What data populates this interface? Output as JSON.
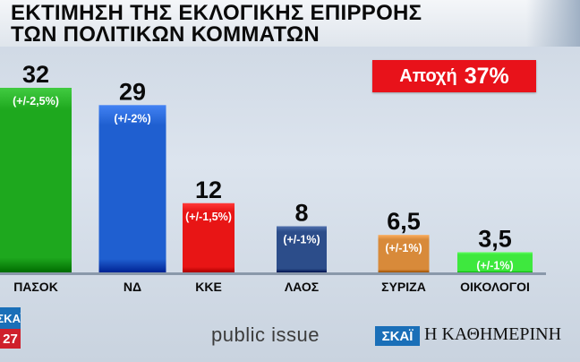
{
  "header": {
    "title_line1": "ΕΚΤΙΜΗΣΗ ΤΗΣ ΕΚΛΟΓΙΚΗΣ ΕΠΙΡΡΟΗΣ",
    "title_line2": "ΤΩΝ ΠΟΛΙΤΙΚΩΝ ΚΟΜΜΑΤΩΝ"
  },
  "abstention": {
    "label": "Αποχή",
    "value": "37%"
  },
  "chart_data": {
    "type": "bar",
    "title": "ΕΚΤΙΜΗΣΗ ΤΗΣ ΕΚΛΟΓΙΚΗΣ ΕΠΙΡΡΟΗΣ ΤΩΝ ΠΟΛΙΤΙΚΩΝ ΚΟΜΜΑΤΩΝ",
    "categories": [
      "ΠΑΣΟΚ",
      "ΝΔ",
      "ΚΚΕ",
      "ΛΑΟΣ",
      "ΣΥΡΙΖΑ",
      "ΟΙΚΟΛΟΓΟΙ"
    ],
    "values": [
      32,
      29,
      12,
      8,
      6.5,
      3.5
    ],
    "value_labels": [
      "32",
      "29",
      "12",
      "8",
      "6,5",
      "3,5"
    ],
    "margins": [
      "(+/-2,5%)",
      "(+/-2%)",
      "(+/-1,5%)",
      "(+/-1%)",
      "(+/-1%)",
      "(+/-1%)"
    ],
    "colors": [
      "#1ea81e",
      "#1f5fd0",
      "#e81515",
      "#2c4d8a",
      "#d88a3a",
      "#3ee83e"
    ],
    "ylim": [
      0,
      32
    ],
    "grid": false,
    "legend": "none"
  },
  "footer": {
    "source_text": "public issue",
    "channel_logo": "ΣΚΑΪ",
    "newspaper_logo": "Η ΚΑΘΗΜΕΡΙΝΗ",
    "badge_top": "ΣΚΑΪ",
    "badge_bottom": "27"
  }
}
